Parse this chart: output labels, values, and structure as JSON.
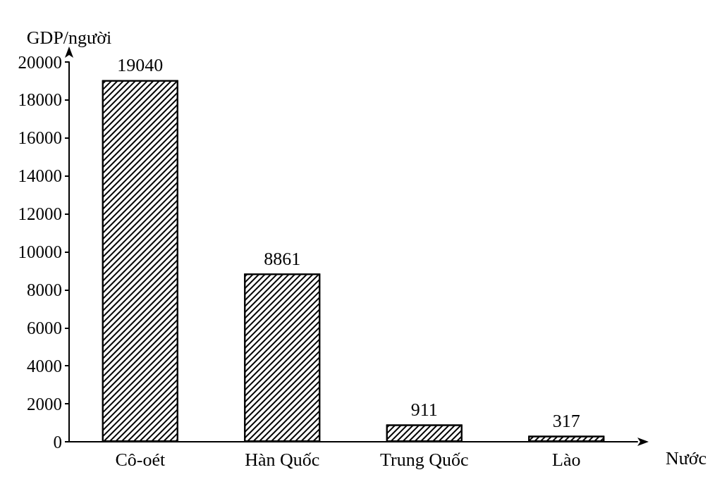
{
  "chart_data": {
    "type": "bar",
    "xlabel": "Nước",
    "ylabel": "GDP/người",
    "categories": [
      "Cô-oét",
      "Hàn Quốc",
      "Trung Quốc",
      "Lào"
    ],
    "values": [
      19040,
      8861,
      911,
      317
    ],
    "color": "#ffffff",
    "ylim": [
      0,
      20000
    ],
    "yticks": [
      0,
      2000,
      4000,
      6000,
      8000,
      10000,
      12000,
      14000,
      16000,
      18000,
      20000
    ],
    "grid": false,
    "data_labels": true
  }
}
